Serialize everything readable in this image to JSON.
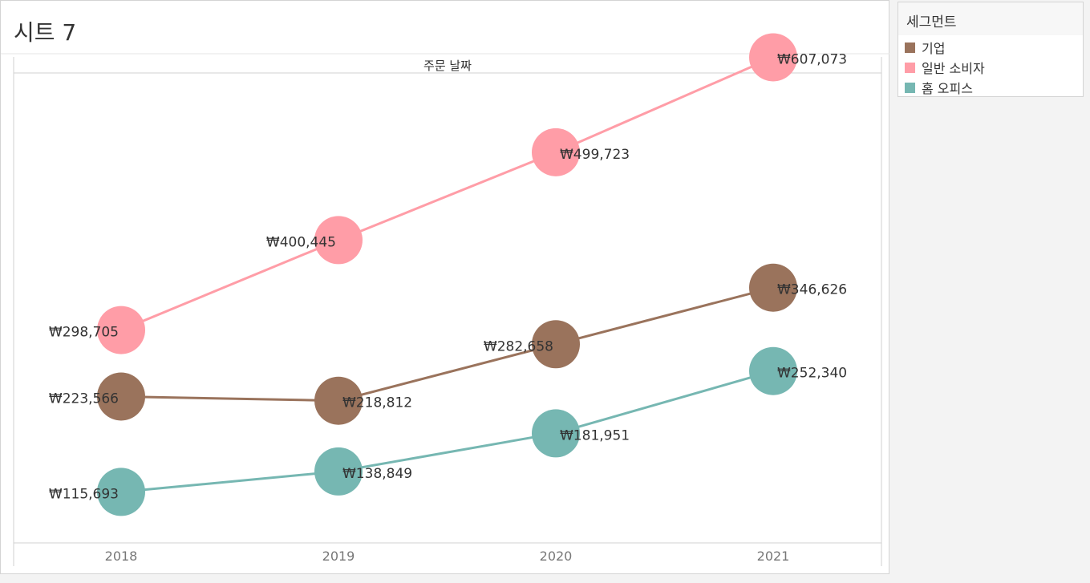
{
  "sheet": {
    "title": "시트 7"
  },
  "legend": {
    "title": "세그먼트",
    "items": [
      {
        "label": "기업",
        "color": "#9a735c"
      },
      {
        "label": "일반 소비자",
        "color": "#ff9da7"
      },
      {
        "label": "홈 오피스",
        "color": "#76b7b2"
      }
    ]
  },
  "chart_data": {
    "type": "line",
    "title": "",
    "column_header": "주문 날짜",
    "categories": [
      "2018",
      "2019",
      "2020",
      "2021"
    ],
    "series": [
      {
        "name": "기업",
        "color": "#9a735c",
        "values": [
          223566,
          218812,
          282658,
          346626
        ],
        "labels": [
          "₩223,566",
          "₩218,812",
          "₩282,658",
          "₩346,626"
        ]
      },
      {
        "name": "일반 소비자",
        "color": "#ff9da7",
        "values": [
          298705,
          400445,
          499723,
          607073
        ],
        "labels": [
          "₩298,705",
          "₩400,445",
          "₩499,723",
          "₩607,073"
        ]
      },
      {
        "name": "홈 오피스",
        "color": "#76b7b2",
        "values": [
          115693,
          138849,
          181951,
          252340
        ],
        "labels": [
          "₩115,693",
          "₩138,849",
          "₩181,951",
          "₩252,340"
        ]
      }
    ],
    "grid": false,
    "legend_position": "right"
  }
}
